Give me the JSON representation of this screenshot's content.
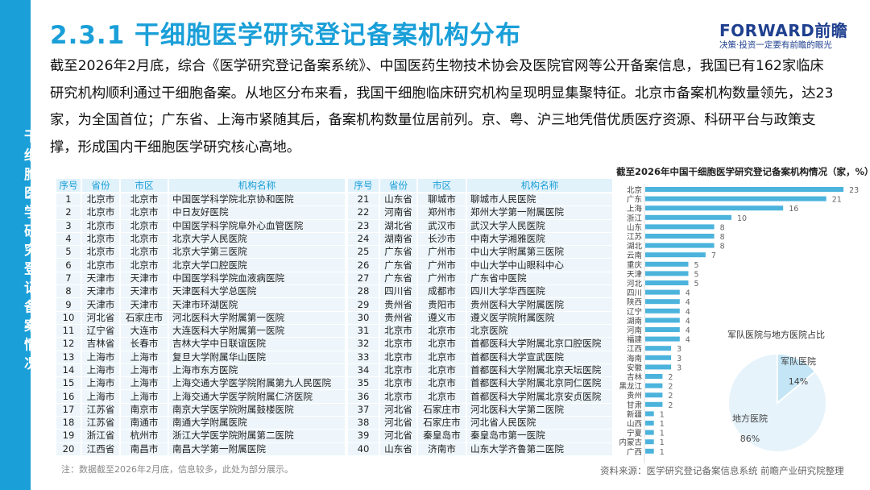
{
  "sidebar": {
    "label": "干细胞医学研究登记备案情况"
  },
  "header": {
    "title": "2.3.1 干细胞医学研究登记备案机构分布",
    "logo_main": "FORWARD前瞻",
    "logo_sub": "决策·投资一定要有前瞻的眼光"
  },
  "intro": "截至2026年2月底，综合《医学研究登记备案系统》、中国医药生物技术协会及医院官网等公开备案信息，我国已有162家临床研究机构顺利通过干细胞备案。从地区分布来看，我国干细胞临床研究机构呈现明显集聚特征。北京市备案机构数量领先，达23家，为全国首位；广东省、上海市紧随其后，备案机构数量位居前列。京、粤、沪三地凭借优质医疗资源、科研平台与政策支撑，形成国内干细胞医学研究核心高地。",
  "table": {
    "headers": [
      "序号",
      "省份",
      "市区",
      "机构名称"
    ],
    "rows": [
      [
        "1",
        "北京市",
        "北京市",
        "中国医学科学院北京协和医院"
      ],
      [
        "2",
        "北京市",
        "北京市",
        "中日友好医院"
      ],
      [
        "3",
        "北京市",
        "北京市",
        "中国医学科学院阜外心血管医院"
      ],
      [
        "4",
        "北京市",
        "北京市",
        "北京大学人民医院"
      ],
      [
        "5",
        "北京市",
        "北京市",
        "北京大学第三医院"
      ],
      [
        "6",
        "北京市",
        "北京市",
        "北京大学口腔医院"
      ],
      [
        "7",
        "天津市",
        "天津市",
        "中国医学科学院血液病医院"
      ],
      [
        "8",
        "天津市",
        "天津市",
        "天津医科大学总医院"
      ],
      [
        "9",
        "天津市",
        "天津市",
        "天津市环湖医院"
      ],
      [
        "10",
        "河北省",
        "石家庄市",
        "河北医科大学附属第一医院"
      ],
      [
        "11",
        "辽宁省",
        "大连市",
        "大连医科大学附属第一医院"
      ],
      [
        "12",
        "吉林省",
        "长春市",
        "吉林大学中日联谊医院"
      ],
      [
        "13",
        "上海市",
        "上海市",
        "复旦大学附属华山医院"
      ],
      [
        "14",
        "上海市",
        "上海市",
        "上海市东方医院"
      ],
      [
        "15",
        "上海市",
        "上海市",
        "上海交通大学医学院附属第九人民医院"
      ],
      [
        "16",
        "上海市",
        "上海市",
        "上海交通大学医学院附属仁济医院"
      ],
      [
        "17",
        "江苏省",
        "南京市",
        "南京大学医学院附属鼓楼医院"
      ],
      [
        "18",
        "江苏省",
        "南通市",
        "南通大学附属医院"
      ],
      [
        "19",
        "浙江省",
        "杭州市",
        "浙江大学医学院附属第二医院"
      ],
      [
        "20",
        "江西省",
        "南昌市",
        "南昌大学第一附属医院"
      ],
      [
        "21",
        "山东省",
        "聊城市",
        "聊城市人民医院"
      ],
      [
        "22",
        "河南省",
        "郑州市",
        "郑州大学第一附属医院"
      ],
      [
        "23",
        "湖北省",
        "武汉市",
        "武汉大学人民医院"
      ],
      [
        "24",
        "湖南省",
        "长沙市",
        "中南大学湘雅医院"
      ],
      [
        "25",
        "广东省",
        "广州市",
        "中山大学附属第三医院"
      ],
      [
        "26",
        "广东省",
        "广州市",
        "中山大学中山眼科中心"
      ],
      [
        "27",
        "广东省",
        "广州市",
        "广东省中医院"
      ],
      [
        "28",
        "四川省",
        "成都市",
        "四川大学华西医院"
      ],
      [
        "29",
        "贵州省",
        "贵阳市",
        "贵州医科大学附属医院"
      ],
      [
        "30",
        "贵州省",
        "遵义市",
        "遵义医学院附属医院"
      ],
      [
        "31",
        "北京市",
        "北京市",
        "北京医院"
      ],
      [
        "32",
        "北京市",
        "北京市",
        "首都医科大学附属北京口腔医院"
      ],
      [
        "33",
        "北京市",
        "北京市",
        "首都医科大学宣武医院"
      ],
      [
        "34",
        "北京市",
        "北京市",
        "首都医科大学附属北京天坛医院"
      ],
      [
        "35",
        "北京市",
        "北京市",
        "首都医科大学附属北京同仁医院"
      ],
      [
        "36",
        "北京市",
        "北京市",
        "首都医科大学附属北京安贞医院"
      ],
      [
        "37",
        "河北省",
        "石家庄市",
        "河北医科大学第二医院"
      ],
      [
        "38",
        "河北省",
        "石家庄市",
        "河北省人民医院"
      ],
      [
        "39",
        "河北省",
        "秦皇岛市",
        "秦皇岛市第一医院"
      ],
      [
        "40",
        "山东省",
        "济南市",
        "山东大学齐鲁第二医院"
      ]
    ],
    "note": "注：数据截至2026年2月底，信息较多，此处为部分展示。"
  },
  "chart_data": [
    {
      "type": "bar",
      "orientation": "horizontal",
      "title": "截至2026年中国干细胞医学研究登记备案机构情况（家，%）",
      "categories": [
        "北京",
        "广东",
        "上海",
        "浙江",
        "山东",
        "江苏",
        "湖北",
        "云南",
        "重庆",
        "天津",
        "河北",
        "四川",
        "陕西",
        "辽宁",
        "湖南",
        "河南",
        "福建",
        "江西",
        "海南",
        "安徽",
        "吉林",
        "黑龙江",
        "贵州",
        "甘肃",
        "新疆",
        "山西",
        "宁夏",
        "内蒙古",
        "广西"
      ],
      "values": [
        23,
        21,
        16,
        10,
        8,
        8,
        8,
        7,
        5,
        5,
        5,
        4,
        4,
        4,
        4,
        4,
        4,
        3,
        3,
        3,
        2,
        2,
        2,
        2,
        1,
        1,
        1,
        1,
        1
      ],
      "color": "#4bb3dc"
    },
    {
      "type": "pie",
      "title": "军队医院与地方医院占比",
      "labels": [
        "军队医院",
        "地方医院"
      ],
      "values": [
        14,
        86
      ],
      "value_labels": [
        "14%",
        "86%"
      ],
      "colors": [
        "#c3e5f5",
        "#e6f3fb"
      ]
    }
  ],
  "source": "资料来源：医学研究登记备案信息系统 前瞻产业研究院整理"
}
